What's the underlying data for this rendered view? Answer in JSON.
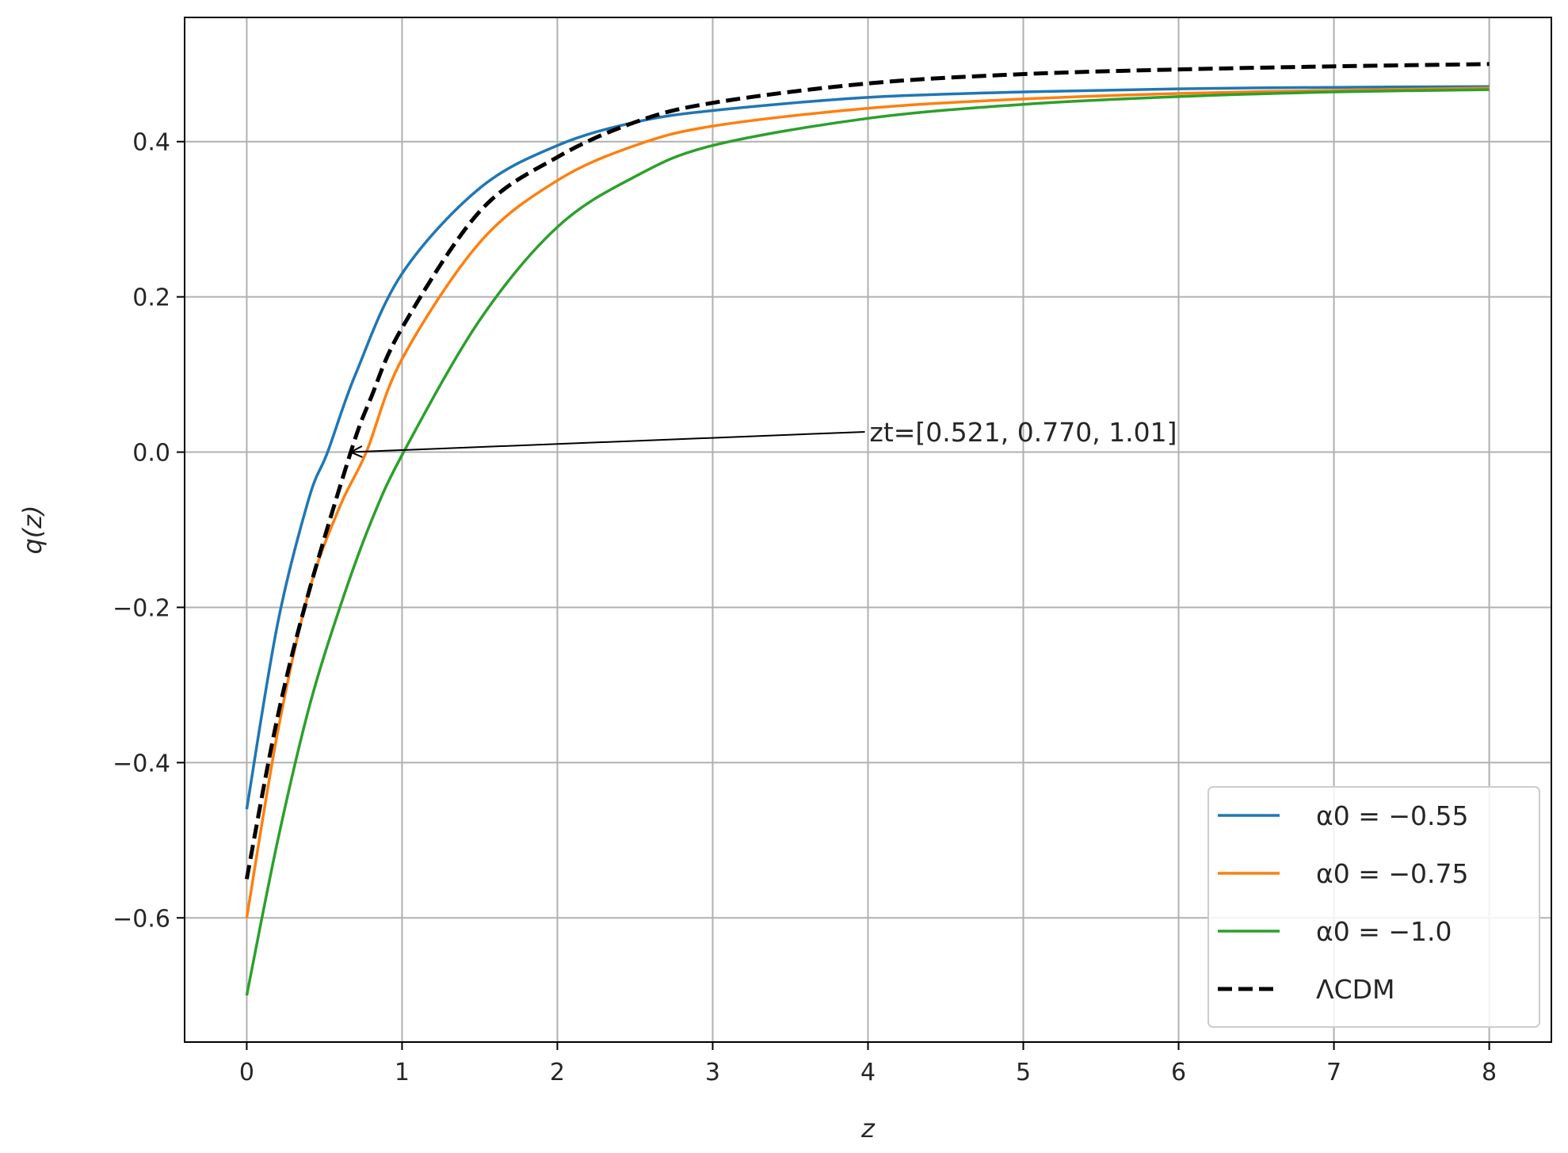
{
  "chart_data": {
    "type": "line",
    "title": "",
    "xlabel": "z",
    "ylabel": "q(z)",
    "xlim": [
      -0.4,
      8.4
    ],
    "ylim": [
      -0.76,
      0.56
    ],
    "xticks": [
      0,
      1,
      2,
      3,
      4,
      5,
      6,
      7,
      8
    ],
    "xtick_labels": [
      "0",
      "1",
      "2",
      "3",
      "4",
      "5",
      "6",
      "7",
      "8"
    ],
    "yticks": [
      -0.6,
      -0.4,
      -0.2,
      0.0,
      0.2,
      0.4
    ],
    "ytick_labels": [
      "−0.6",
      "−0.4",
      "−0.2",
      "0.0",
      "0.2",
      "0.4"
    ],
    "grid": true,
    "legend_position": "lower-right",
    "series": [
      {
        "name": "α0 = −0.55",
        "color": "#1f77b4",
        "dash": "solid",
        "x": [
          0,
          0.2,
          0.4,
          0.521,
          0.7,
          1.0,
          1.5,
          2.0,
          2.5,
          3.0,
          4.0,
          5.0,
          6.0,
          7.0,
          8.0
        ],
        "y": [
          -0.46,
          -0.22,
          -0.06,
          0.0,
          0.1,
          0.23,
          0.34,
          0.395,
          0.425,
          0.44,
          0.457,
          0.464,
          0.468,
          0.47,
          0.471
        ]
      },
      {
        "name": "α0 = −0.75",
        "color": "#ff7f0e",
        "dash": "solid",
        "x": [
          0,
          0.2,
          0.4,
          0.6,
          0.77,
          1.0,
          1.5,
          2.0,
          2.5,
          3.0,
          4.0,
          5.0,
          6.0,
          7.0,
          8.0
        ],
        "y": [
          -0.6,
          -0.36,
          -0.18,
          -0.07,
          0.0,
          0.12,
          0.27,
          0.35,
          0.395,
          0.42,
          0.443,
          0.455,
          0.462,
          0.466,
          0.469
        ]
      },
      {
        "name": "α0 = −1.0",
        "color": "#2ca02c",
        "dash": "solid",
        "x": [
          0,
          0.2,
          0.4,
          0.6,
          0.8,
          1.01,
          1.5,
          2.0,
          2.5,
          3.0,
          4.0,
          5.0,
          6.0,
          7.0,
          8.0
        ],
        "y": [
          -0.7,
          -0.5,
          -0.33,
          -0.2,
          -0.09,
          0.0,
          0.17,
          0.29,
          0.355,
          0.395,
          0.43,
          0.448,
          0.458,
          0.464,
          0.467
        ]
      },
      {
        "name": "ΛCDM",
        "color": "#000000",
        "dash": "dashed",
        "x": [
          0,
          0.2,
          0.4,
          0.67,
          0.8,
          1.0,
          1.5,
          2.0,
          2.5,
          3.0,
          4.0,
          5.0,
          6.0,
          7.0,
          8.0
        ],
        "y": [
          -0.55,
          -0.34,
          -0.18,
          0.0,
          0.07,
          0.16,
          0.31,
          0.38,
          0.425,
          0.45,
          0.475,
          0.487,
          0.493,
          0.497,
          0.5
        ]
      }
    ],
    "annotation": {
      "text": "zt=[0.521, 0.770, 1.01]",
      "text_x": 4.0,
      "text_y": 0.02,
      "arrow_x": 0.67,
      "arrow_y": 0.0
    }
  }
}
